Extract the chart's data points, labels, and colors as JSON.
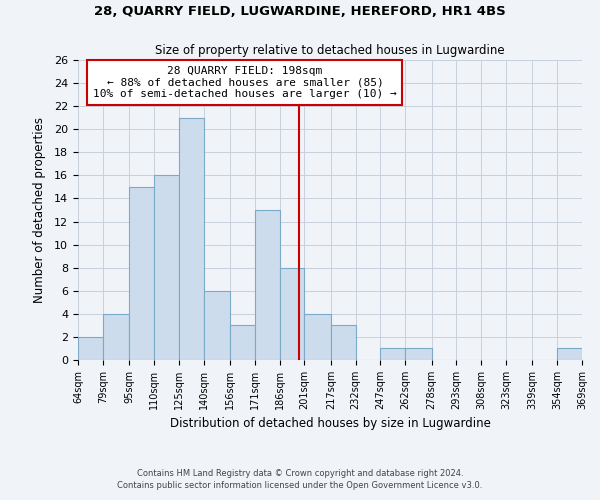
{
  "title1": "28, QUARRY FIELD, LUGWARDINE, HEREFORD, HR1 4BS",
  "title2": "Size of property relative to detached houses in Lugwardine",
  "xlabel": "Distribution of detached houses by size in Lugwardine",
  "ylabel": "Number of detached properties",
  "bar_edges": [
    64,
    79,
    95,
    110,
    125,
    140,
    156,
    171,
    186,
    201,
    217,
    232,
    247,
    262,
    278,
    293,
    308,
    323,
    339,
    354,
    369
  ],
  "bar_heights": [
    2,
    4,
    15,
    16,
    21,
    6,
    3,
    13,
    8,
    4,
    3,
    0,
    1,
    1,
    0,
    0,
    0,
    0,
    0,
    1
  ],
  "tick_labels": [
    "64sqm",
    "79sqm",
    "95sqm",
    "110sqm",
    "125sqm",
    "140sqm",
    "156sqm",
    "171sqm",
    "186sqm",
    "201sqm",
    "217sqm",
    "232sqm",
    "247sqm",
    "262sqm",
    "278sqm",
    "293sqm",
    "308sqm",
    "323sqm",
    "339sqm",
    "354sqm",
    "369sqm"
  ],
  "bar_color": "#ccdcec",
  "bar_edge_color": "#7aaac8",
  "reference_line_x": 198,
  "reference_line_color": "#cc0000",
  "ylim": [
    0,
    26
  ],
  "yticks": [
    0,
    2,
    4,
    6,
    8,
    10,
    12,
    14,
    16,
    18,
    20,
    22,
    24,
    26
  ],
  "annotation_title": "28 QUARRY FIELD: 198sqm",
  "annotation_line1": "← 88% of detached houses are smaller (85)",
  "annotation_line2": "10% of semi-detached houses are larger (10) →",
  "annotation_box_color": "#ffffff",
  "annotation_box_edge": "#cc0000",
  "footer1": "Contains HM Land Registry data © Crown copyright and database right 2024.",
  "footer2": "Contains public sector information licensed under the Open Government Licence v3.0.",
  "bg_color": "#f0f4f8",
  "plot_bg_color": "#f0f4f8",
  "grid_color": "#c8d0dc"
}
